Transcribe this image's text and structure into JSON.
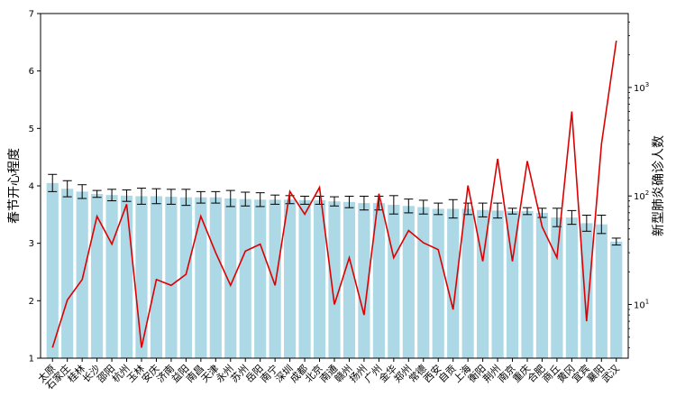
{
  "chart_data": {
    "type": "bar",
    "categories": [
      "太原",
      "石家庄",
      "桂林",
      "长沙",
      "邵阳",
      "杭州",
      "玉林",
      "安庆",
      "济南",
      "益阳",
      "南昌",
      "天津",
      "永州",
      "苏州",
      "岳阳",
      "南宁",
      "深圳",
      "成都",
      "北京",
      "南通",
      "赣州",
      "扬州",
      "广州",
      "金华",
      "郑州",
      "常德",
      "西安",
      "自贡",
      "上海",
      "衡阳",
      "荆州",
      "南京",
      "重庆",
      "合肥",
      "商丘",
      "黄冈",
      "宜宾",
      "襄阳",
      "武汉"
    ],
    "series": [
      {
        "kind": "bar",
        "axis": "left",
        "color": "#add8e6",
        "values": [
          4.05,
          3.95,
          3.9,
          3.86,
          3.84,
          3.83,
          3.82,
          3.82,
          3.81,
          3.8,
          3.8,
          3.8,
          3.78,
          3.77,
          3.76,
          3.76,
          3.76,
          3.75,
          3.75,
          3.73,
          3.72,
          3.7,
          3.7,
          3.67,
          3.65,
          3.63,
          3.6,
          3.6,
          3.6,
          3.58,
          3.57,
          3.56,
          3.56,
          3.53,
          3.45,
          3.45,
          3.35,
          3.33,
          3.03
        ],
        "errors": [
          0.15,
          0.14,
          0.12,
          0.06,
          0.1,
          0.1,
          0.14,
          0.13,
          0.13,
          0.14,
          0.1,
          0.1,
          0.14,
          0.12,
          0.12,
          0.08,
          0.07,
          0.07,
          0.07,
          0.08,
          0.1,
          0.12,
          0.12,
          0.16,
          0.12,
          0.12,
          0.1,
          0.16,
          0.1,
          0.12,
          0.13,
          0.05,
          0.06,
          0.08,
          0.16,
          0.12,
          0.14,
          0.16,
          0.06
        ]
      },
      {
        "kind": "line",
        "axis": "right",
        "color": "#dd0000",
        "values": [
          4,
          11,
          17,
          65,
          36,
          84,
          4,
          17,
          15,
          19,
          65,
          30,
          15,
          31,
          36,
          15,
          110,
          68,
          120,
          10,
          27,
          8,
          105,
          27,
          48,
          37,
          32,
          9,
          125,
          25,
          220,
          25,
          210,
          52,
          27,
          600,
          7,
          300,
          2700
        ]
      }
    ],
    "xlabel": "",
    "ylabel": "春节开心程度",
    "y2label": "新型肺炎确诊人数",
    "ylim": [
      1,
      7
    ],
    "yticks": [
      "1",
      "2",
      "3",
      "4",
      "5",
      "6",
      "7"
    ],
    "y2scale": "log",
    "y2lim": [
      3.2,
      4800
    ],
    "y2ticks": [
      "10",
      "10",
      "10"
    ],
    "y2tick_exponents": [
      "1",
      "2",
      "3"
    ],
    "grid": false,
    "legend": "none"
  }
}
